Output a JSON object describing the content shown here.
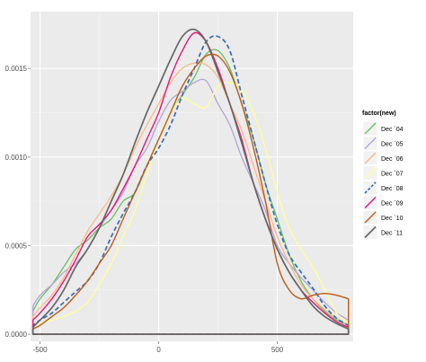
{
  "chart_data": {
    "type": "line",
    "title": "",
    "xlabel": "",
    "ylabel": "",
    "xlim": [
      -540,
      820
    ],
    "ylim": [
      -4e-05,
      0.00182
    ],
    "x_ticks": [
      {
        "value": -500,
        "label": "-500"
      },
      {
        "value": 0,
        "label": "0"
      },
      {
        "value": 500,
        "label": "500"
      }
    ],
    "y_ticks": [
      {
        "value": 0.0,
        "label": "0.0000"
      },
      {
        "value": 0.0005,
        "label": "0.0005"
      },
      {
        "value": 0.001,
        "label": "0.0010"
      },
      {
        "value": 0.0015,
        "label": "0.0015"
      }
    ],
    "grid": true,
    "background_color": "#ebebeb",
    "legend": {
      "title": "factor(new)",
      "position": "right"
    },
    "series": [
      {
        "name": "Dec `04",
        "color": "#66c061",
        "dashed": false,
        "width": 1.3,
        "x": [
          -530,
          -500,
          -450,
          -400,
          -350,
          -300,
          -250,
          -200,
          -150,
          -100,
          -50,
          0,
          50,
          100,
          150,
          200,
          250,
          300,
          350,
          400,
          450,
          500,
          550,
          600,
          650,
          700,
          750,
          800
        ],
        "y": [
          0.00013,
          0.0002,
          0.00028,
          0.00038,
          0.00048,
          0.00053,
          0.0006,
          0.00065,
          0.00075,
          0.0008,
          0.00095,
          0.0011,
          0.00125,
          0.00135,
          0.00145,
          0.00158,
          0.0016,
          0.0015,
          0.0013,
          0.0011,
          0.00085,
          0.00065,
          0.00045,
          0.0003,
          0.0002,
          0.00013,
          8e-05,
          5e-05
        ]
      },
      {
        "name": "Dec `05",
        "color": "#b3a3d8",
        "dashed": false,
        "width": 1.3,
        "x": [
          -530,
          -500,
          -450,
          -400,
          -350,
          -300,
          -250,
          -200,
          -150,
          -100,
          -50,
          0,
          50,
          100,
          150,
          200,
          250,
          300,
          350,
          400,
          450,
          500,
          550,
          600,
          650,
          700,
          750,
          800
        ],
        "y": [
          0.00016,
          0.00022,
          0.00028,
          0.00035,
          0.0004,
          0.00048,
          0.0006,
          0.0007,
          0.0008,
          0.00095,
          0.00105,
          0.0012,
          0.00132,
          0.00137,
          0.00142,
          0.00143,
          0.0013,
          0.00118,
          0.001,
          0.00085,
          0.0007,
          0.0005,
          0.0004,
          0.00032,
          0.00025,
          0.00018,
          0.00012,
          8e-05
        ]
      },
      {
        "name": "Dec `06",
        "color": "#fbb884",
        "dashed": false,
        "width": 1.3,
        "x": [
          -530,
          -500,
          -450,
          -400,
          -350,
          -300,
          -250,
          -200,
          -150,
          -100,
          -50,
          0,
          50,
          100,
          150,
          200,
          250,
          300,
          350,
          400,
          450,
          500,
          550,
          600,
          650,
          700,
          750,
          800
        ],
        "y": [
          0.0001,
          0.00015,
          0.00022,
          0.00032,
          0.00045,
          0.00058,
          0.00068,
          0.00078,
          0.0009,
          0.00105,
          0.00118,
          0.0013,
          0.00142,
          0.0015,
          0.00153,
          0.00152,
          0.00145,
          0.0013,
          0.00115,
          0.00095,
          0.00075,
          0.00055,
          0.0004,
          0.00028,
          0.0002,
          0.00014,
          9e-05,
          5e-05
        ]
      },
      {
        "name": "Dec `07",
        "color": "#ffff99",
        "dashed": false,
        "width": 1.3,
        "x": [
          -530,
          -500,
          -450,
          -400,
          -350,
          -300,
          -250,
          -200,
          -150,
          -100,
          -50,
          0,
          50,
          100,
          150,
          200,
          250,
          300,
          350,
          400,
          450,
          500,
          550,
          600,
          650,
          700,
          750,
          800
        ],
        "y": [
          4e-05,
          6e-05,
          8e-05,
          0.0001,
          0.00013,
          0.00018,
          0.00028,
          0.0004,
          0.00055,
          0.0007,
          0.0009,
          0.0011,
          0.00125,
          0.00133,
          0.0013,
          0.00128,
          0.0014,
          0.00142,
          0.00138,
          0.00125,
          0.00105,
          0.0008,
          0.0006,
          0.00048,
          0.00038,
          0.00025,
          0.00012,
          6e-05
        ]
      },
      {
        "name": "Dec `08",
        "color": "#386cb0",
        "dashed": true,
        "width": 1.7,
        "x": [
          -530,
          -500,
          -450,
          -400,
          -350,
          -300,
          -250,
          -200,
          -150,
          -100,
          -50,
          0,
          50,
          100,
          150,
          200,
          250,
          300,
          350,
          400,
          450,
          500,
          550,
          600,
          650,
          700,
          750,
          800
        ],
        "y": [
          5e-05,
          8e-05,
          0.00012,
          0.00018,
          0.00024,
          0.0003,
          0.0004,
          0.00055,
          0.00068,
          0.0008,
          0.00095,
          0.00105,
          0.00118,
          0.00135,
          0.0015,
          0.00165,
          0.00168,
          0.0016,
          0.00135,
          0.0011,
          0.00085,
          0.00062,
          0.00045,
          0.00035,
          0.00026,
          0.00016,
          9e-05,
          5e-05
        ]
      },
      {
        "name": "Dec `09",
        "color": "#e7157a",
        "dashed": false,
        "width": 1.4,
        "x": [
          -530,
          -500,
          -450,
          -400,
          -350,
          -300,
          -250,
          -200,
          -150,
          -100,
          -50,
          0,
          50,
          100,
          150,
          200,
          250,
          300,
          350,
          400,
          450,
          500,
          550,
          600,
          650,
          700,
          750,
          800
        ],
        "y": [
          8e-05,
          0.00012,
          0.0002,
          0.0003,
          0.00042,
          0.00055,
          0.00062,
          0.0007,
          0.00082,
          0.00095,
          0.0011,
          0.00125,
          0.00145,
          0.0016,
          0.0017,
          0.00165,
          0.0015,
          0.0013,
          0.0011,
          0.00085,
          0.00065,
          0.00048,
          0.00035,
          0.00025,
          0.00018,
          0.00012,
          7e-05,
          4e-05
        ]
      },
      {
        "name": "Dec `10",
        "color": "#bf5b17",
        "dashed": false,
        "width": 1.4,
        "x": [
          -530,
          -500,
          -450,
          -400,
          -350,
          -300,
          -250,
          -200,
          -150,
          -100,
          -50,
          0,
          50,
          100,
          150,
          200,
          250,
          300,
          350,
          400,
          450,
          500,
          550,
          600,
          650,
          700,
          750,
          800
        ],
        "y": [
          3e-05,
          5e-05,
          0.0001,
          0.00015,
          0.00022,
          0.0003,
          0.0004,
          0.0005,
          0.00065,
          0.0008,
          0.00095,
          0.0011,
          0.00125,
          0.0014,
          0.0015,
          0.00157,
          0.00157,
          0.00148,
          0.0013,
          0.00105,
          0.00075,
          0.0004,
          0.00025,
          0.0002,
          0.00022,
          0.00023,
          0.00022,
          0.0002
        ]
      },
      {
        "name": "Dec `11",
        "color": "#666666",
        "dashed": false,
        "width": 1.7,
        "x": [
          -530,
          -500,
          -450,
          -400,
          -350,
          -300,
          -250,
          -200,
          -150,
          -100,
          -50,
          0,
          50,
          100,
          150,
          200,
          250,
          300,
          350,
          400,
          450,
          500,
          550,
          600,
          650,
          700,
          750,
          800
        ],
        "y": [
          4e-05,
          8e-05,
          0.00015,
          0.00025,
          0.00038,
          0.00048,
          0.0006,
          0.00075,
          0.0009,
          0.00108,
          0.00125,
          0.0014,
          0.00155,
          0.00168,
          0.00172,
          0.00165,
          0.00148,
          0.0013,
          0.00108,
          0.00085,
          0.00065,
          0.00048,
          0.00035,
          0.00025,
          0.00016,
          0.0001,
          6e-05,
          3e-05
        ]
      }
    ]
  }
}
